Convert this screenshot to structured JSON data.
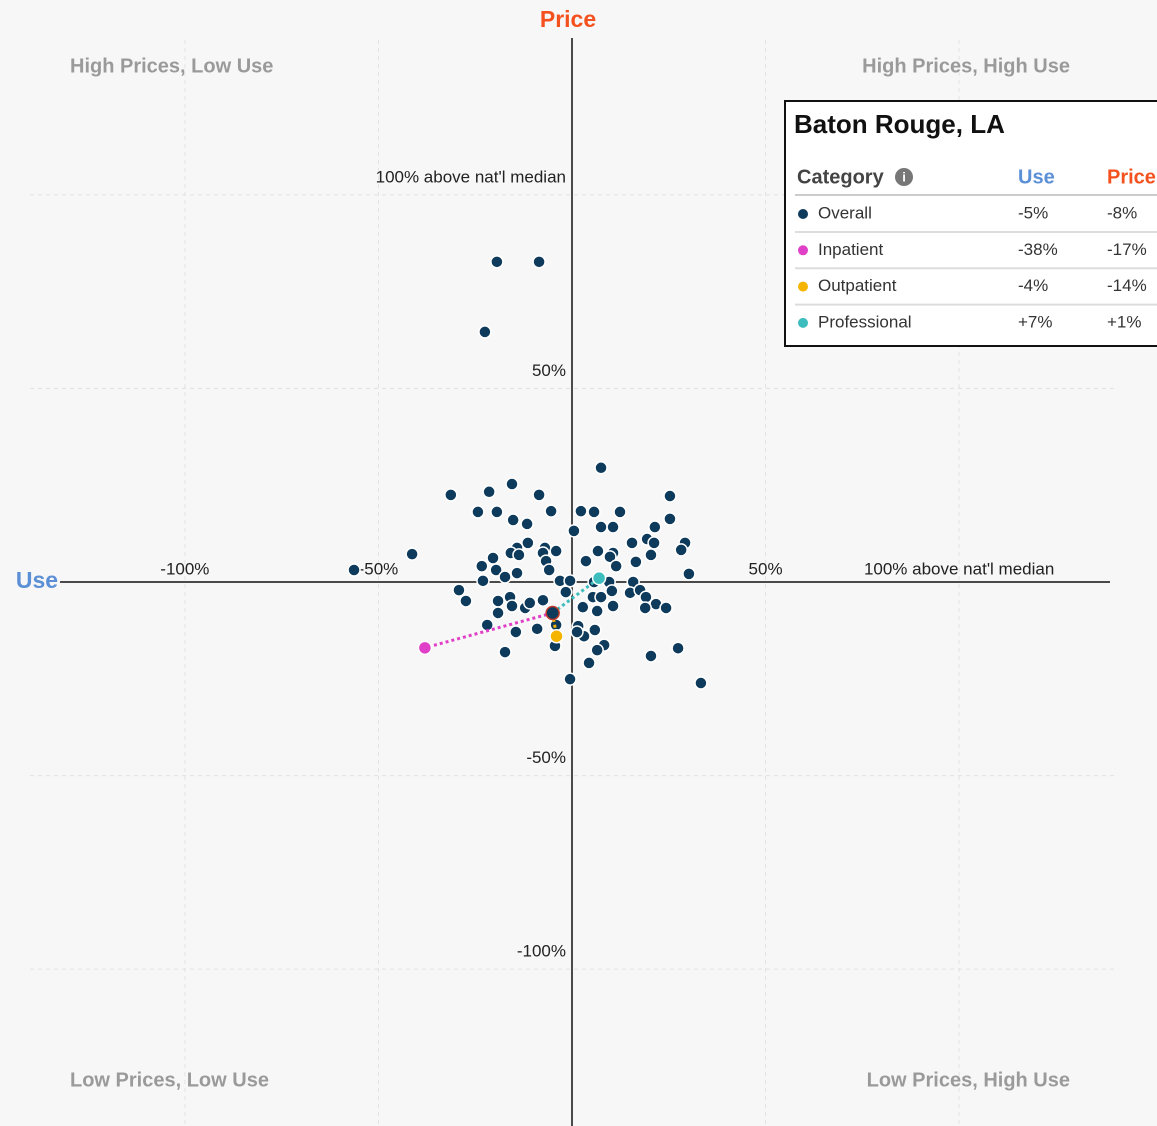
{
  "chart_data": {
    "type": "scatter",
    "xlabel": "Use",
    "ylabel": "Price",
    "xlabel_color": "#5b8fd6",
    "ylabel_color": "#f4511e",
    "quadrants": {
      "top_left": "High Prices, Low Use",
      "top_right": "High Prices, High Use",
      "bottom_left": "Low Prices, Low Use",
      "bottom_right": "Low Prices, High Use"
    },
    "xlim": [
      -140,
      140
    ],
    "ylim": [
      -140,
      140
    ],
    "xticks": [
      {
        "value": -100,
        "label": "-100%"
      },
      {
        "value": -50,
        "label": "-50%"
      },
      {
        "value": 50,
        "label": "50%"
      },
      {
        "value": 100,
        "label": "100% above nat'l median"
      }
    ],
    "yticks": [
      {
        "value": 100,
        "label": "100% above nat'l median"
      },
      {
        "value": 50,
        "label": "50%"
      },
      {
        "value": -50,
        "label": "-50%"
      },
      {
        "value": -100,
        "label": "-100%"
      }
    ],
    "grid": true,
    "points": {
      "color": "#0e3a5c",
      "x": [
        -19.4,
        -8.5,
        -22.5,
        7.5,
        -31.3,
        -21.4,
        -15.5,
        -8.5,
        -24.3,
        -19.4,
        -5.4,
        2.3,
        5.7,
        12.4,
        25.3,
        -15.2,
        -11.6,
        0.5,
        7.5,
        10.6,
        21.4,
        25.3,
        -11.4,
        -14.2,
        -7,
        -4.1,
        6.7,
        10.6,
        15.5,
        19.4,
        21.2,
        29.2,
        28.2,
        20.4,
        -41.3,
        -20.4,
        -15.8,
        -13.7,
        -7.5,
        -6.7,
        3.6,
        9.8,
        16.5,
        -23.3,
        -19.6,
        -14.2,
        -17.3,
        -23,
        -5.9,
        -3.1,
        -0.5,
        11.4,
        9.6,
        15.8,
        30.2,
        -56.3,
        -29.2,
        -27.4,
        -19.1,
        -16,
        -15.5,
        -12.1,
        -10.9,
        -7.5,
        -1.6,
        5.7,
        5.4,
        7.5,
        10.6,
        15,
        17.6,
        19.1,
        21.7,
        24.3,
        18.9,
        10.3,
        2.8,
        6.5,
        1.6,
        -21.9,
        -19.1,
        -14.5,
        -9,
        -17.3,
        -4.4,
        3.1,
        5.9,
        1.3,
        8.3,
        6.5,
        4.4,
        20.4,
        27.4,
        -0.5,
        33.3,
        -4.1
      ],
      "values": [
        82.7,
        82.7,
        64.6,
        29.5,
        22.5,
        23.3,
        25.3,
        22.5,
        18.1,
        18.1,
        18.3,
        18.3,
        18.1,
        18.1,
        22.2,
        16,
        15,
        13.2,
        14.2,
        14.2,
        14.2,
        16.3,
        10.1,
        8.8,
        8.8,
        8,
        8,
        7.5,
        10.1,
        11.1,
        10.1,
        10.1,
        8.3,
        7,
        7.2,
        6.2,
        7.5,
        7,
        7.5,
        5.4,
        5.4,
        6.5,
        5.2,
        4.1,
        3.1,
        2.3,
        1.3,
        0.3,
        3.1,
        0.3,
        0.3,
        4.1,
        0,
        0,
        2.1,
        3.1,
        -2.1,
        -4.9,
        -4.9,
        -3.9,
        -6.2,
        -6.7,
        -5.4,
        -4.7,
        -2.6,
        0,
        -3.9,
        -3.9,
        -6.2,
        -2.8,
        -2.1,
        -3.9,
        -5.7,
        -6.7,
        -6.7,
        -2.3,
        -6.5,
        -7.5,
        -11.4,
        -11.1,
        -8,
        -12.9,
        -12.1,
        -18.1,
        -16.5,
        -14,
        -12.4,
        -12.9,
        -16.3,
        -17.6,
        -20.9,
        -19.1,
        -17.1,
        -25.1,
        -26.1,
        -11.1
      ]
    },
    "table": {
      "title": "Baton Rouge, LA",
      "columns": [
        "Category",
        "Use",
        "Price"
      ]
    },
    "series": [
      {
        "name": "Overall",
        "color": "#0e3a5c",
        "x": [
          -5
        ],
        "values": [
          -8
        ],
        "x_labels": [
          "-5%"
        ],
        "value_labels": [
          "-8%"
        ]
      },
      {
        "name": "Inpatient",
        "color": "#e040c8",
        "x": [
          -38
        ],
        "values": [
          -17
        ],
        "x_labels": [
          "-38%"
        ],
        "value_labels": [
          "-17%"
        ]
      },
      {
        "name": "Outpatient",
        "color": "#f5b400",
        "x": [
          -4
        ],
        "values": [
          -14
        ],
        "x_labels": [
          "-4%"
        ],
        "value_labels": [
          "-14%"
        ]
      },
      {
        "name": "Professional",
        "color": "#3dbdbd",
        "x": [
          7
        ],
        "values": [
          1
        ],
        "x_labels": [
          "+7%"
        ],
        "value_labels": [
          "+1%"
        ]
      }
    ]
  }
}
